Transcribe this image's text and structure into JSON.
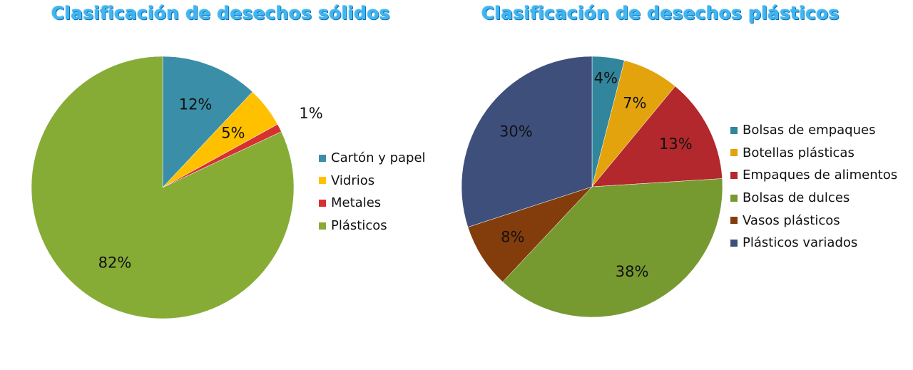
{
  "chart_data": [
    {
      "type": "pie",
      "title": "Clasificación de desechos sólidos",
      "legend_position": "right",
      "slices": [
        {
          "name": "Cartón y papel",
          "value": 12,
          "label": "12%",
          "color": "#3a8ea8"
        },
        {
          "name": "Vidrios",
          "value": 5,
          "label": "5%",
          "color": "#ffc000"
        },
        {
          "name": "Metales",
          "value": 1,
          "label": "1%",
          "color": "#d63031"
        },
        {
          "name": "Plásticos",
          "value": 82,
          "label": "82%",
          "color": "#86ac36"
        }
      ]
    },
    {
      "type": "pie",
      "title": "Clasificación de desechos plásticos",
      "legend_position": "right",
      "slices": [
        {
          "name": "Bolsas de empaques",
          "value": 4,
          "label": "4%",
          "color": "#31859c"
        },
        {
          "name": "Botellas plásticas",
          "value": 7,
          "label": "7%",
          "color": "#e3a30c"
        },
        {
          "name": "Empaques de alimentos",
          "value": 13,
          "label": "13%",
          "color": "#b2282c"
        },
        {
          "name": "Bolsas de dulces",
          "value": 38,
          "label": "38%",
          "color": "#779a30"
        },
        {
          "name": "Vasos plásticos",
          "value": 8,
          "label": "8%",
          "color": "#833c0b"
        },
        {
          "name": "Plásticos variados",
          "value": 30,
          "label": "30%",
          "color": "#3f4f7c"
        }
      ]
    }
  ]
}
